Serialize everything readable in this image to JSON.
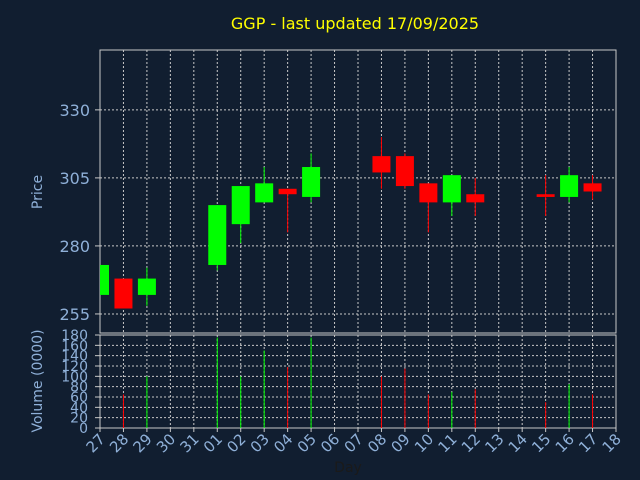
{
  "chart_data": {
    "type": "candlestick",
    "title": "GGP - last updated 17/09/2025",
    "xlabel": "Day",
    "colors": {
      "background": "#111e30",
      "axis_text": "#8fb0d8",
      "title": "#ffff00",
      "grid": "#c8c8c8",
      "up": "#00ff00",
      "down": "#ff0000"
    },
    "grid": true,
    "x_tick_labels": [
      "27",
      "28",
      "29",
      "30",
      "31",
      "01",
      "02",
      "03",
      "04",
      "05",
      "06",
      "07",
      "08",
      "09",
      "10",
      "11",
      "12",
      "13",
      "14",
      "15",
      "16",
      "17",
      "18"
    ],
    "price_panel": {
      "ylabel": "Price",
      "ylim": [
        248,
        352
      ],
      "yticks": [
        255,
        280,
        305,
        330
      ]
    },
    "volume_panel": {
      "ylabel": "Volume (0000)",
      "ylim": [
        0,
        180
      ],
      "yticks": [
        0,
        20,
        40,
        60,
        80,
        100,
        120,
        140,
        160,
        180
      ]
    },
    "candles": [
      {
        "day": "27",
        "open": 262,
        "high": 273,
        "low": 262,
        "close": 273,
        "volume": 0
      },
      {
        "day": "28",
        "open": 268,
        "high": 268,
        "low": 257,
        "close": 257,
        "volume": 65
      },
      {
        "day": "29",
        "open": 262,
        "high": 272,
        "low": 258,
        "close": 268,
        "volume": 100
      },
      {
        "day": "01",
        "open": 273,
        "high": 295,
        "low": 271,
        "close": 295,
        "volume": 175
      },
      {
        "day": "02",
        "open": 288,
        "high": 302,
        "low": 281,
        "close": 302,
        "volume": 100
      },
      {
        "day": "03",
        "open": 296,
        "high": 309,
        "low": 296,
        "close": 303,
        "volume": 150
      },
      {
        "day": "04",
        "open": 301,
        "high": 301,
        "low": 285,
        "close": 299,
        "volume": 118
      },
      {
        "day": "05",
        "open": 298,
        "high": 314,
        "low": 296,
        "close": 309,
        "volume": 175
      },
      {
        "day": "08",
        "open": 313,
        "high": 320,
        "low": 301,
        "close": 307,
        "volume": 100
      },
      {
        "day": "09",
        "open": 313,
        "high": 314,
        "low": 301,
        "close": 302,
        "volume": 115
      },
      {
        "day": "10",
        "open": 303,
        "high": 303,
        "low": 285,
        "close": 296,
        "volume": 65
      },
      {
        "day": "11",
        "open": 296,
        "high": 306,
        "low": 291,
        "close": 306,
        "volume": 70
      },
      {
        "day": "12",
        "open": 299,
        "high": 305,
        "low": 291,
        "close": 296,
        "volume": 75
      },
      {
        "day": "15",
        "open": 299,
        "high": 306,
        "low": 291,
        "close": 298,
        "volume": 50
      },
      {
        "day": "16",
        "open": 298,
        "high": 309,
        "low": 296,
        "close": 306,
        "volume": 85
      },
      {
        "day": "17",
        "open": 303,
        "high": 306,
        "low": 297,
        "close": 300,
        "volume": 65
      }
    ]
  }
}
